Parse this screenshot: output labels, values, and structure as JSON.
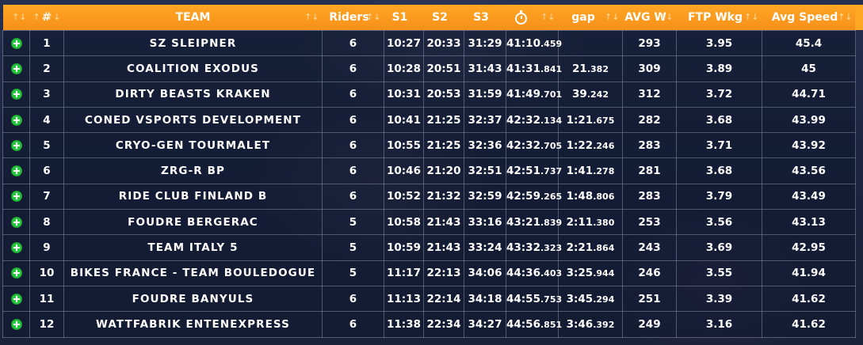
{
  "headers": {
    "add": "",
    "rank": "#",
    "team": "TEAM",
    "riders": "Riders",
    "s1": "S1",
    "s2": "S2",
    "s3": "S3",
    "time_icon": "stopwatch-icon",
    "gap": "gap",
    "avg_w": "AVG W",
    "ftp_wkg": "FTP Wkg",
    "avg_speed": "Avg Speed",
    "sort_glyph": "↑↓"
  },
  "add_icon": "plus-circle-icon",
  "colors": {
    "header_orange": "#f7901a",
    "add_green": "#27c93f"
  },
  "rows": [
    {
      "rank": "1",
      "team": "SZ SLEIPNER",
      "riders": "6",
      "s1": "10:27",
      "s2": "20:33",
      "s3": "31:29",
      "time": "41:10",
      "time_ms": ".459",
      "gap": "",
      "gap_ms": "",
      "avg_w": "293",
      "ftp": "3.95",
      "speed": "45.4"
    },
    {
      "rank": "2",
      "team": "COALITION EXODUS",
      "riders": "6",
      "s1": "10:28",
      "s2": "20:51",
      "s3": "31:43",
      "time": "41:31",
      "time_ms": ".841",
      "gap": "21",
      "gap_ms": ".382",
      "avg_w": "309",
      "ftp": "3.89",
      "speed": "45"
    },
    {
      "rank": "3",
      "team": "DIRTY BEASTS KRAKEN",
      "riders": "6",
      "s1": "10:31",
      "s2": "20:53",
      "s3": "31:59",
      "time": "41:49",
      "time_ms": ".701",
      "gap": "39",
      "gap_ms": ".242",
      "avg_w": "312",
      "ftp": "3.72",
      "speed": "44.71"
    },
    {
      "rank": "4",
      "team": "CONED VSPORTS DEVELOPMENT",
      "riders": "6",
      "s1": "10:41",
      "s2": "21:25",
      "s3": "32:37",
      "time": "42:32",
      "time_ms": ".134",
      "gap": "1:21",
      "gap_ms": ".675",
      "avg_w": "282",
      "ftp": "3.68",
      "speed": "43.99"
    },
    {
      "rank": "5",
      "team": "CRYO-GEN TOURMALET",
      "riders": "6",
      "s1": "10:55",
      "s2": "21:25",
      "s3": "32:36",
      "time": "42:32",
      "time_ms": ".705",
      "gap": "1:22",
      "gap_ms": ".246",
      "avg_w": "283",
      "ftp": "3.71",
      "speed": "43.92"
    },
    {
      "rank": "6",
      "team": "ZRG-R BP",
      "riders": "6",
      "s1": "10:46",
      "s2": "21:20",
      "s3": "32:51",
      "time": "42:51",
      "time_ms": ".737",
      "gap": "1:41",
      "gap_ms": ".278",
      "avg_w": "281",
      "ftp": "3.68",
      "speed": "43.56"
    },
    {
      "rank": "7",
      "team": "RIDE CLUB FINLAND B",
      "riders": "6",
      "s1": "10:52",
      "s2": "21:32",
      "s3": "32:59",
      "time": "42:59",
      "time_ms": ".265",
      "gap": "1:48",
      "gap_ms": ".806",
      "avg_w": "283",
      "ftp": "3.79",
      "speed": "43.49"
    },
    {
      "rank": "8",
      "team": "FOUDRE BERGERAC",
      "riders": "5",
      "s1": "10:58",
      "s2": "21:43",
      "s3": "33:16",
      "time": "43:21",
      "time_ms": ".839",
      "gap": "2:11",
      "gap_ms": ".380",
      "avg_w": "253",
      "ftp": "3.56",
      "speed": "43.13"
    },
    {
      "rank": "9",
      "team": "TEAM ITALY 5",
      "riders": "5",
      "s1": "10:59",
      "s2": "21:43",
      "s3": "33:24",
      "time": "43:32",
      "time_ms": ".323",
      "gap": "2:21",
      "gap_ms": ".864",
      "avg_w": "243",
      "ftp": "3.69",
      "speed": "42.95"
    },
    {
      "rank": "10",
      "team": "BIKES FRANCE - TEAM BOULEDOGUE",
      "riders": "5",
      "s1": "11:17",
      "s2": "22:13",
      "s3": "34:06",
      "time": "44:36",
      "time_ms": ".403",
      "gap": "3:25",
      "gap_ms": ".944",
      "avg_w": "246",
      "ftp": "3.55",
      "speed": "41.94"
    },
    {
      "rank": "11",
      "team": "FOUDRE BANYULS",
      "riders": "6",
      "s1": "11:13",
      "s2": "22:14",
      "s3": "34:18",
      "time": "44:55",
      "time_ms": ".753",
      "gap": "3:45",
      "gap_ms": ".294",
      "avg_w": "251",
      "ftp": "3.39",
      "speed": "41.62"
    },
    {
      "rank": "12",
      "team": "WATTFABRIK ENTENEXPRESS",
      "riders": "6",
      "s1": "11:38",
      "s2": "22:34",
      "s3": "34:27",
      "time": "44:56",
      "time_ms": ".851",
      "gap": "3:46",
      "gap_ms": ".392",
      "avg_w": "249",
      "ftp": "3.16",
      "speed": "41.62"
    }
  ]
}
